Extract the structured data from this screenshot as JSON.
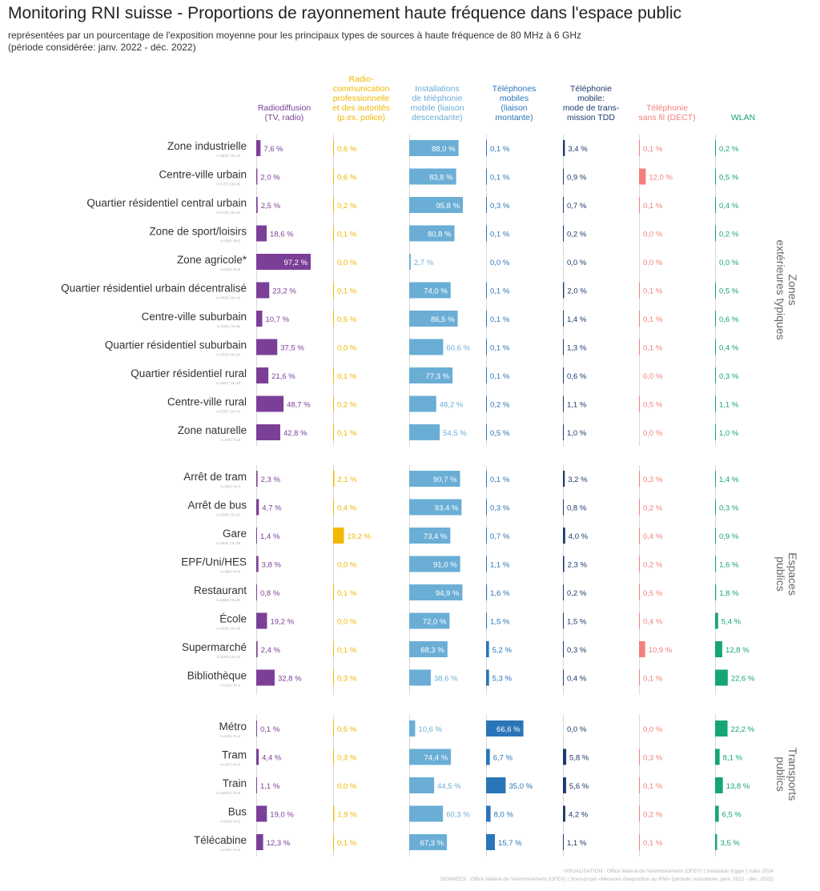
{
  "title": "Monitoring RNI suisse - Proportions de rayonnement haute fréquence dans l'espace public",
  "subtitle_1": "représentées par un pourcentage de l'exposition moyenne pour les principaux types de sources à haute fréquence de 80 MHz à 6 GHz",
  "subtitle_2": "(période considérée: janv. 2022 - déc. 2022)",
  "footer_1": "VISUALISATION : Office fédéral de l'environnement (OFEV) | Sebastian Egger | mars 2024",
  "footer_2": "DONNÉES : Office fédéral de l'environnement (OFEV) | Sous-projet «Mesures d'exposition au RNI» (période considérée: janv. 2022 - déc. 2022)",
  "colors": {
    "radiodiffusion": "#7b3f98",
    "radiocom": "#f2b701",
    "installations": "#6aaed6",
    "mobiles": "#2a75b8",
    "tdd": "#1c3b6e",
    "dect": "#f37f7c",
    "wlan": "#16a673"
  },
  "chart_data": {
    "type": "bar",
    "unit": "%",
    "series": [
      {
        "key": "radiodiffusion",
        "name": "Radiodiffusion\n(TV, radio)"
      },
      {
        "key": "radiocom",
        "name": "Radio-\ncommunication\nprofessionnelle\net des autorités\n(p.ex. police)"
      },
      {
        "key": "installations",
        "name": "Installations\nde téléphonie\nmobile (liaison\ndescendante)"
      },
      {
        "key": "mobiles",
        "name": "Téléphones\nmobiles\n(liaison\nmontante)"
      },
      {
        "key": "tdd",
        "name": "Téléphonie\nmobile:\nmode de trans-\nmission TDD"
      },
      {
        "key": "dect",
        "name": "Téléphonie\nsans fil (DECT)"
      },
      {
        "key": "wlan",
        "name": "WLAN"
      }
    ],
    "groups": [
      {
        "label": "Zones\nextérieures typiques",
        "rows": [
          {
            "name": "Zone industrielle",
            "sub": "n=6810 | N=10",
            "values": [
              7.6,
              0.6,
              88.0,
              0.1,
              3.4,
              0.1,
              0.2
            ]
          },
          {
            "name": "Centre-ville urbain",
            "sub": "n=1757 | N=10",
            "values": [
              2.0,
              0.6,
              83.8,
              0.1,
              0.9,
              12.0,
              0.5
            ]
          },
          {
            "name": "Quartier résidentiel central urbain",
            "sub": "n=1738 | N=10",
            "values": [
              2.5,
              0.2,
              95.8,
              0.3,
              0.7,
              0.1,
              0.4
            ]
          },
          {
            "name": "Zone de sport/loisirs",
            "sub": "n=558 | N=5",
            "values": [
              18.6,
              0.1,
              80.8,
              0.1,
              0.2,
              0.0,
              0.2
            ]
          },
          {
            "name": "Zone agricole*",
            "sub": "n=649 | N=5",
            "values": [
              97.2,
              0.0,
              2.7,
              0.0,
              0.0,
              0.0,
              0.0
            ]
          },
          {
            "name": "Quartier résidentiel urbain décentralisé",
            "sub": "n=4503 | N=10",
            "values": [
              23.2,
              0.1,
              74.0,
              0.1,
              2.0,
              0.1,
              0.5
            ]
          },
          {
            "name": "Centre-ville suburbain",
            "sub": "n=1031 | N=11",
            "values": [
              10.7,
              0.5,
              86.5,
              0.1,
              1.4,
              0.1,
              0.6
            ]
          },
          {
            "name": "Quartier résidentiel suburbain",
            "sub": "n=1510 | N=10",
            "values": [
              37.5,
              0.0,
              60.6,
              0.1,
              1.3,
              0.1,
              0.4
            ]
          },
          {
            "name": "Quartier résidentiel rural",
            "sub": "n=3307 | N=10",
            "values": [
              21.6,
              0.1,
              77.3,
              0.1,
              0.6,
              0.0,
              0.3
            ]
          },
          {
            "name": "Centre-ville rural",
            "sub": "n=2707 | N=10",
            "values": [
              48.7,
              0.2,
              48.2,
              0.2,
              1.1,
              0.5,
              1.1
            ]
          },
          {
            "name": "Zone naturelle",
            "sub": "n=478 | N=5",
            "values": [
              42.8,
              0.1,
              54.5,
              0.5,
              1.0,
              0.0,
              1.0
            ]
          }
        ]
      },
      {
        "label": "Espaces\npublics",
        "rows": [
          {
            "name": "Arrêt de tram",
            "sub": "n=414 | N=4",
            "values": [
              2.3,
              2.1,
              90.7,
              0.1,
              3.2,
              0.3,
              1.4
            ]
          },
          {
            "name": "Arrêt de bus",
            "sub": "n=2396 | N=22",
            "values": [
              4.7,
              0.4,
              93.4,
              0.3,
              0.8,
              0.2,
              0.3
            ]
          },
          {
            "name": "Gare",
            "sub": "n=2542 | N=26",
            "values": [
              1.4,
              19.2,
              73.4,
              0.7,
              4.0,
              0.4,
              0.9
            ]
          },
          {
            "name": "EPF/Uni/HES",
            "sub": "n=496 | N=4",
            "values": [
              3.8,
              0.0,
              91.0,
              1.1,
              2.3,
              0.2,
              1.6
            ]
          },
          {
            "name": "Restaurant",
            "sub": "n=3380 | N=35",
            "values": [
              0.8,
              0.1,
              94.9,
              1.6,
              0.2,
              0.5,
              1.8
            ]
          },
          {
            "name": "École",
            "sub": "n=2200 | N=16",
            "values": [
              19.2,
              0.0,
              72.0,
              1.5,
              1.5,
              0.4,
              5.4
            ]
          },
          {
            "name": "Supermarché",
            "sub": "n=1204 | N=11",
            "values": [
              2.4,
              0.1,
              68.3,
              5.2,
              0.3,
              10.9,
              12.8
            ]
          },
          {
            "name": "Bibliothèque",
            "sub": "n=125 | N=1",
            "values": [
              32.8,
              0.3,
              38.6,
              5.3,
              0.4,
              0.1,
              22.6
            ]
          }
        ]
      },
      {
        "label": "Transports\npublics",
        "rows": [
          {
            "name": "Métro",
            "sub": "n=141 | N=2",
            "values": [
              0.1,
              0.5,
              10.6,
              66.6,
              0.0,
              0.0,
              22.2
            ]
          },
          {
            "name": "Tram",
            "sub": "n=447 | N=2",
            "values": [
              4.4,
              0.3,
              74.4,
              6.7,
              5.8,
              0.3,
              8.1
            ]
          },
          {
            "name": "Train",
            "sub": "n=12810 | N=9",
            "values": [
              1.1,
              0.0,
              44.5,
              35.0,
              5.6,
              0.1,
              13.8
            ]
          },
          {
            "name": "Bus",
            "sub": "n=544 | N=2",
            "values": [
              19.0,
              1.9,
              60.3,
              8.0,
              4.2,
              0.2,
              6.5
            ]
          },
          {
            "name": "Télécabine",
            "sub": "n=148 | N=2",
            "values": [
              12.3,
              0.1,
              67.3,
              15.7,
              1.1,
              0.1,
              3.5
            ]
          }
        ]
      }
    ]
  }
}
